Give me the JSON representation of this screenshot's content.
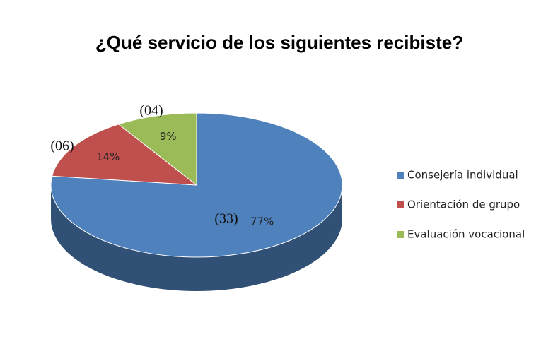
{
  "chart_data": {
    "type": "pie",
    "title": "¿Qué servicio de los siguientes recibiste?",
    "categories": [
      "Consejería individual",
      "Orientación de grupo",
      "Evaluación vocacional"
    ],
    "values": [
      77,
      14,
      9
    ],
    "value_labels": [
      "77%",
      "14%",
      "9%"
    ],
    "annotations": [
      "(33)",
      "(06)",
      "(04)"
    ],
    "colors": [
      "#4f81bd",
      "#c0504d",
      "#9bbb59"
    ],
    "legend": "right"
  }
}
